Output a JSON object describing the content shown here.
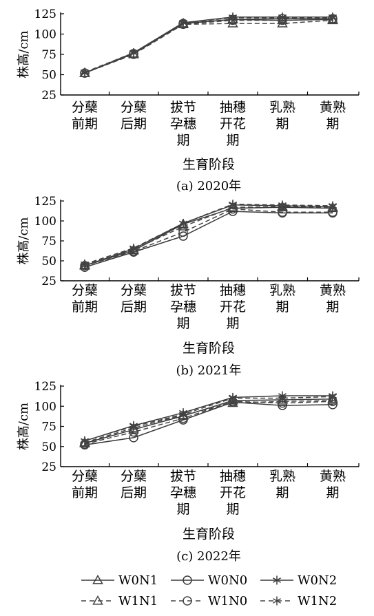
{
  "chart_data": [
    {
      "type": "line",
      "caption": "(a) 2020年",
      "xlabel": "生育阶段",
      "ylabel": "株高/cm",
      "ylim": [
        25,
        125
      ],
      "yticks": [
        25,
        50,
        75,
        100,
        125
      ],
      "categories": [
        [
          "分蘖",
          "前期"
        ],
        [
          "分蘖",
          "后期"
        ],
        [
          "拔节",
          "孕穗",
          "期"
        ],
        [
          "抽穗",
          "开花",
          "期"
        ],
        [
          "乳熟",
          "期"
        ],
        [
          "黄熟",
          "期"
        ]
      ],
      "series": [
        {
          "name": "W0N1",
          "values": [
            52,
            76,
            113,
            118,
            117,
            118
          ]
        },
        {
          "name": "W0N0",
          "values": [
            52,
            76,
            113,
            118,
            119,
            119
          ]
        },
        {
          "name": "W0N2",
          "values": [
            52,
            77,
            114,
            121,
            121,
            121
          ]
        },
        {
          "name": "W1N1",
          "values": [
            52,
            75,
            112,
            113,
            113,
            117
          ]
        },
        {
          "name": "W1N0",
          "values": [
            52,
            75,
            112,
            117,
            117,
            118
          ]
        },
        {
          "name": "W1N2",
          "values": [
            53,
            77,
            114,
            120,
            120,
            120
          ]
        }
      ]
    },
    {
      "type": "line",
      "caption": "(b) 2021年",
      "xlabel": "生育阶段",
      "ylabel": "株高/cm",
      "ylim": [
        25,
        125
      ],
      "yticks": [
        25,
        50,
        75,
        100,
        125
      ],
      "categories": [
        [
          "分蘖",
          "前期"
        ],
        [
          "分蘖",
          "后期"
        ],
        [
          "拔节",
          "孕穗",
          "期"
        ],
        [
          "抽穗",
          "开花",
          "期"
        ],
        [
          "乳熟",
          "期"
        ],
        [
          "黄熟",
          "期"
        ]
      ],
      "series": [
        {
          "name": "W0N1",
          "values": [
            44,
            63,
            96,
            116,
            117,
            116
          ]
        },
        {
          "name": "W0N0",
          "values": [
            42,
            61,
            81,
            112,
            110,
            110
          ]
        },
        {
          "name": "W0N2",
          "values": [
            44,
            65,
            97,
            120,
            119,
            118
          ]
        },
        {
          "name": "W1N1",
          "values": [
            45,
            64,
            93,
            117,
            118,
            117
          ]
        },
        {
          "name": "W1N0",
          "values": [
            44,
            62,
            86,
            115,
            111,
            111
          ]
        },
        {
          "name": "W1N2",
          "values": [
            46,
            66,
            97,
            121,
            120,
            119
          ]
        }
      ]
    },
    {
      "type": "line",
      "caption": "(c) 2022年",
      "xlabel": "生育阶段",
      "ylabel": "株高/cm",
      "ylim": [
        25,
        125
      ],
      "yticks": [
        25,
        50,
        75,
        100,
        125
      ],
      "categories": [
        [
          "分蘖",
          "前期"
        ],
        [
          "分蘖",
          "后期"
        ],
        [
          "拔节",
          "孕穗",
          "期"
        ],
        [
          "抽穗",
          "开花",
          "期"
        ],
        [
          "乳熟",
          "期"
        ],
        [
          "黄熟",
          "期"
        ]
      ],
      "series": [
        {
          "name": "W0N1",
          "values": [
            54,
            71,
            88,
            107,
            108,
            109
          ]
        },
        {
          "name": "W0N0",
          "values": [
            52,
            61,
            83,
            105,
            101,
            102
          ]
        },
        {
          "name": "W0N2",
          "values": [
            57,
            76,
            92,
            111,
            113,
            113
          ]
        },
        {
          "name": "W1N1",
          "values": [
            55,
            73,
            89,
            104,
            106,
            107
          ]
        },
        {
          "name": "W1N0",
          "values": [
            53,
            68,
            85,
            106,
            104,
            106
          ]
        },
        {
          "name": "W1N2",
          "values": [
            57,
            75,
            90,
            110,
            110,
            112
          ]
        }
      ]
    }
  ],
  "legend": {
    "placement": "bottom",
    "entries": [
      {
        "name": "W0N1",
        "marker": "triangle",
        "dash": false
      },
      {
        "name": "W0N0",
        "marker": "circle",
        "dash": false
      },
      {
        "name": "W0N2",
        "marker": "star",
        "dash": false
      },
      {
        "name": "W1N1",
        "marker": "triangle",
        "dash": true
      },
      {
        "name": "W1N0",
        "marker": "circle",
        "dash": true
      },
      {
        "name": "W1N2",
        "marker": "star",
        "dash": true
      }
    ]
  },
  "colors": {
    "line": "#000000",
    "solid_line": "#3a3a3a",
    "dashed_line": "#444444"
  }
}
